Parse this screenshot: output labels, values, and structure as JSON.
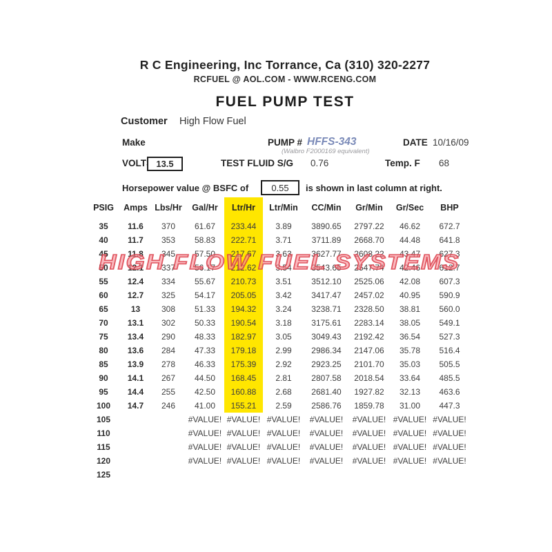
{
  "header": {
    "company_line": "R C Engineering, Inc  Torrance,  Ca  (310) 320-2277",
    "contact_line": "RCFUEL @ AOL.COM -  WWW.RCENG.COM",
    "title": "FUEL PUMP TEST"
  },
  "info": {
    "customer_label": "Customer",
    "customer_value": "High Flow Fuel",
    "make_label": "Make",
    "pump_label": "PUMP #",
    "pump_value": "HFFS-343",
    "pump_note": "(Walbro F2000169 equivalent)",
    "date_label": "DATE",
    "date_value": "10/16/09",
    "volts_label": "VOLTS",
    "volts_value": "13.5",
    "test_fluid_label": "TEST FLUID  S/G",
    "test_fluid_value": "0.76",
    "temp_label": "Temp. F",
    "temp_value": "68",
    "bsfc_prefix": "Horsepower value @  BSFC of",
    "bsfc_value": "0.55",
    "bsfc_suffix": "is shown in last column at right."
  },
  "watermark_text": "HIGH FLOW FUEL SYSTEMS",
  "colors": {
    "highlight_yellow": "#ffe600",
    "pump_value_blue": "#7a8ab8",
    "watermark_pink": "#f78f98",
    "watermark_red": "#db3e4a"
  },
  "table": {
    "columns": [
      "PSIG",
      "Amps",
      "Lbs/Hr",
      "Gal/Hr",
      "Ltr/Hr",
      "Ltr/Min",
      "CC/Min",
      "Gr/Min",
      "Gr/Sec",
      "BHP"
    ],
    "highlight_column_index": 4,
    "highlight_row_count": 14,
    "bold_column_count": 2,
    "rows": [
      [
        "35",
        "11.6",
        "370",
        "61.67",
        "233.44",
        "3.89",
        "3890.65",
        "2797.22",
        "46.62",
        "672.7"
      ],
      [
        "40",
        "11.7",
        "353",
        "58.83",
        "222.71",
        "3.71",
        "3711.89",
        "2668.70",
        "44.48",
        "641.8"
      ],
      [
        "45",
        "11.8",
        "345",
        "57.50",
        "217.67",
        "3.63",
        "3627.77",
        "2608.22",
        "43.47",
        "627.3"
      ],
      [
        "50",
        "12.1",
        "337",
        "56.17",
        "212.62",
        "3.54",
        "3543.65",
        "2547.74",
        "42.46",
        "612.7"
      ],
      [
        "55",
        "12.4",
        "334",
        "55.67",
        "210.73",
        "3.51",
        "3512.10",
        "2525.06",
        "42.08",
        "607.3"
      ],
      [
        "60",
        "12.7",
        "325",
        "54.17",
        "205.05",
        "3.42",
        "3417.47",
        "2457.02",
        "40.95",
        "590.9"
      ],
      [
        "65",
        "13",
        "308",
        "51.33",
        "194.32",
        "3.24",
        "3238.71",
        "2328.50",
        "38.81",
        "560.0"
      ],
      [
        "70",
        "13.1",
        "302",
        "50.33",
        "190.54",
        "3.18",
        "3175.61",
        "2283.14",
        "38.05",
        "549.1"
      ],
      [
        "75",
        "13.4",
        "290",
        "48.33",
        "182.97",
        "3.05",
        "3049.43",
        "2192.42",
        "36.54",
        "527.3"
      ],
      [
        "80",
        "13.6",
        "284",
        "47.33",
        "179.18",
        "2.99",
        "2986.34",
        "2147.06",
        "35.78",
        "516.4"
      ],
      [
        "85",
        "13.9",
        "278",
        "46.33",
        "175.39",
        "2.92",
        "2923.25",
        "2101.70",
        "35.03",
        "505.5"
      ],
      [
        "90",
        "14.1",
        "267",
        "44.50",
        "168.45",
        "2.81",
        "2807.58",
        "2018.54",
        "33.64",
        "485.5"
      ],
      [
        "95",
        "14.4",
        "255",
        "42.50",
        "160.88",
        "2.68",
        "2681.40",
        "1927.82",
        "32.13",
        "463.6"
      ],
      [
        "100",
        "14.7",
        "246",
        "41.00",
        "155.21",
        "2.59",
        "2586.76",
        "1859.78",
        "31.00",
        "447.3"
      ],
      [
        "105",
        "",
        "",
        "#VALUE!",
        "#VALUE!",
        "#VALUE!",
        "#VALUE!",
        "#VALUE!",
        "#VALUE!",
        "#VALUE!"
      ],
      [
        "110",
        "",
        "",
        "#VALUE!",
        "#VALUE!",
        "#VALUE!",
        "#VALUE!",
        "#VALUE!",
        "#VALUE!",
        "#VALUE!"
      ],
      [
        "115",
        "",
        "",
        "#VALUE!",
        "#VALUE!",
        "#VALUE!",
        "#VALUE!",
        "#VALUE!",
        "#VALUE!",
        "#VALUE!"
      ],
      [
        "120",
        "",
        "",
        "#VALUE!",
        "#VALUE!",
        "#VALUE!",
        "#VALUE!",
        "#VALUE!",
        "#VALUE!",
        "#VALUE!"
      ],
      [
        "125",
        "",
        "",
        "",
        "",
        "",
        "",
        "",
        "",
        ""
      ]
    ]
  }
}
